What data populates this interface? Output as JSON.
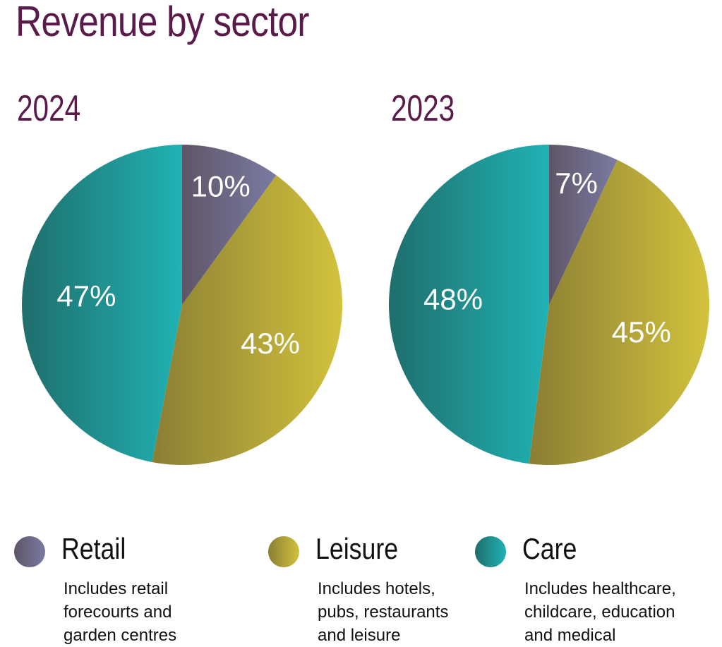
{
  "chart_data": {
    "type": "pie",
    "title": "Revenue by sector",
    "legend_position": "bottom",
    "categories": [
      "Retail",
      "Leisure",
      "Care"
    ],
    "colors": {
      "Retail": [
        "#5f5567",
        "#7a7ba3"
      ],
      "Leisure": [
        "#8a7e35",
        "#d2c23c"
      ],
      "Care": [
        "#1f6e6c",
        "#20b2b4"
      ]
    },
    "charts": [
      {
        "label": "2024",
        "slices": [
          {
            "category": "Retail",
            "value": 10,
            "label": "10%"
          },
          {
            "category": "Leisure",
            "value": 43,
            "label": "43%"
          },
          {
            "category": "Care",
            "value": 47,
            "label": "47%"
          }
        ]
      },
      {
        "label": "2023",
        "slices": [
          {
            "category": "Retail",
            "value": 7,
            "label": "7%"
          },
          {
            "category": "Leisure",
            "value": 45,
            "label": "45%"
          },
          {
            "category": "Care",
            "value": 48,
            "label": "48%"
          }
        ]
      }
    ],
    "legend": [
      {
        "name": "Retail",
        "description": [
          "Includes retail",
          "forecourts and",
          "garden centres"
        ]
      },
      {
        "name": "Leisure",
        "description": [
          "Includes hotels,",
          "pubs, restaurants",
          "and leisure"
        ]
      },
      {
        "name": "Care",
        "description": [
          "Includes healthcare,",
          "childcare, education",
          "and medical"
        ]
      }
    ]
  }
}
